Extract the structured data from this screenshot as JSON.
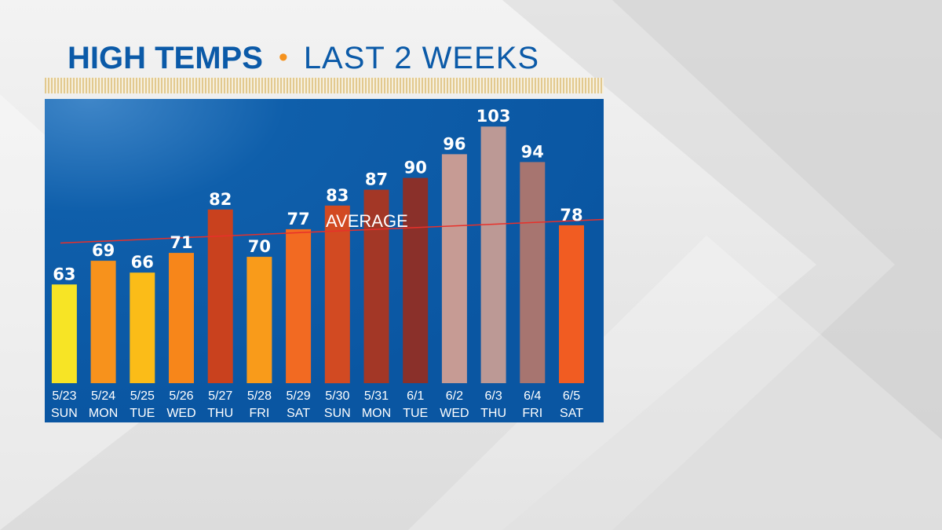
{
  "title": {
    "main": "HIGH TEMPS",
    "separator": "•",
    "sub": "LAST 2 WEEKS"
  },
  "colors": {
    "title": "#0b5aa8",
    "separator": "#f5921e",
    "panel": "#0a5aa6",
    "average_line": "#e8302a"
  },
  "chart_data": {
    "type": "bar",
    "title": "HIGH TEMPS • LAST 2 WEEKS",
    "categories": [
      "5/23",
      "5/24",
      "5/25",
      "5/26",
      "5/27",
      "5/28",
      "5/29",
      "5/30",
      "5/31",
      "6/1",
      "6/2",
      "6/3",
      "6/4",
      "6/5"
    ],
    "days": [
      "SUN",
      "MON",
      "TUE",
      "WED",
      "THU",
      "FRI",
      "SAT",
      "SUN",
      "MON",
      "TUE",
      "WED",
      "THU",
      "FRI",
      "SAT"
    ],
    "values": [
      63,
      69,
      66,
      71,
      82,
      70,
      77,
      83,
      87,
      90,
      96,
      103,
      94,
      78
    ],
    "bar_colors": [
      "#f7e425",
      "#f7921c",
      "#fbbc18",
      "#f7861a",
      "#c9411e",
      "#f99b1a",
      "#f26a22",
      "#d24a22",
      "#a33726",
      "#8a302a",
      "#c69b94",
      "#bc9995",
      "#a77570",
      "#f15c22"
    ],
    "ylim": [
      38,
      110
    ],
    "average": {
      "label": "AVERAGE",
      "start": 73.5,
      "end": 79.5
    },
    "xlabel": "",
    "ylabel": "",
    "grid": false
  }
}
